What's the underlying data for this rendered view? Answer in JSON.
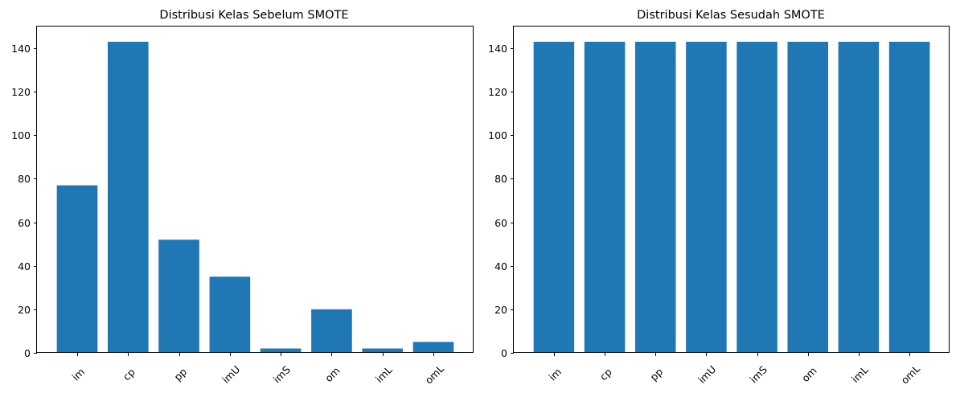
{
  "colors": {
    "bar": "#1f77b4",
    "background": "#ffffff",
    "axis": "#000000"
  },
  "chart_data": [
    {
      "type": "bar",
      "title": "Distribusi Kelas Sebelum SMOTE",
      "xlabel": "",
      "ylabel": "",
      "categories": [
        "im",
        "cp",
        "pp",
        "imU",
        "imS",
        "om",
        "imL",
        "omL"
      ],
      "values": [
        77,
        143,
        52,
        35,
        2,
        20,
        2,
        5
      ],
      "ylim": [
        0,
        150
      ],
      "yticks": [
        0,
        20,
        40,
        60,
        80,
        100,
        120,
        140
      ],
      "xtick_rotation": 45,
      "grid": false,
      "legend": false
    },
    {
      "type": "bar",
      "title": "Distribusi Kelas Sesudah SMOTE",
      "xlabel": "",
      "ylabel": "",
      "categories": [
        "im",
        "cp",
        "pp",
        "imU",
        "imS",
        "om",
        "imL",
        "omL"
      ],
      "values": [
        143,
        143,
        143,
        143,
        143,
        143,
        143,
        143
      ],
      "ylim": [
        0,
        150
      ],
      "yticks": [
        0,
        20,
        40,
        60,
        80,
        100,
        120,
        140
      ],
      "xtick_rotation": 45,
      "grid": false,
      "legend": false
    }
  ]
}
